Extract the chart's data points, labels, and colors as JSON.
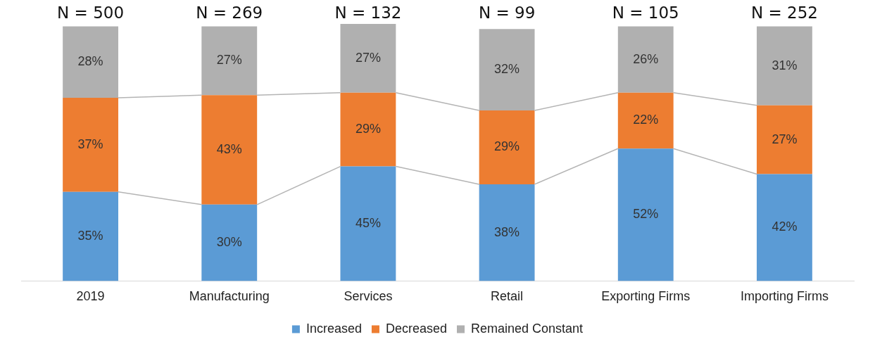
{
  "chart_data": {
    "type": "bar",
    "stacked": true,
    "categories": [
      "2019",
      "Manufacturing",
      "Services",
      "Retail",
      "Exporting Firms",
      "Importing Firms"
    ],
    "series": [
      {
        "name": "Increased",
        "color": "#5b9bd5",
        "values": [
          35,
          30,
          45,
          38,
          52,
          42
        ],
        "value_labels": [
          "35%",
          "30%",
          "45%",
          "38%",
          "52%",
          "42%"
        ]
      },
      {
        "name": "Decreased",
        "color": "#ed7d31",
        "values": [
          37,
          43,
          29,
          29,
          22,
          27
        ],
        "value_labels": [
          "37%",
          "43%",
          "29%",
          "29%",
          "22%",
          "27%"
        ]
      },
      {
        "name": "Remained Constant",
        "color": "#b0b0b0",
        "values": [
          28,
          27,
          27,
          32,
          26,
          31
        ],
        "value_labels": [
          "28%",
          "27%",
          "27%",
          "32%",
          "26%",
          "31%"
        ]
      }
    ],
    "legend": "bottom",
    "grid": false,
    "annotations": [
      "N = 500",
      "N = 269",
      "N = 132",
      "N = 99",
      "N = 105",
      "N = 252"
    ]
  }
}
